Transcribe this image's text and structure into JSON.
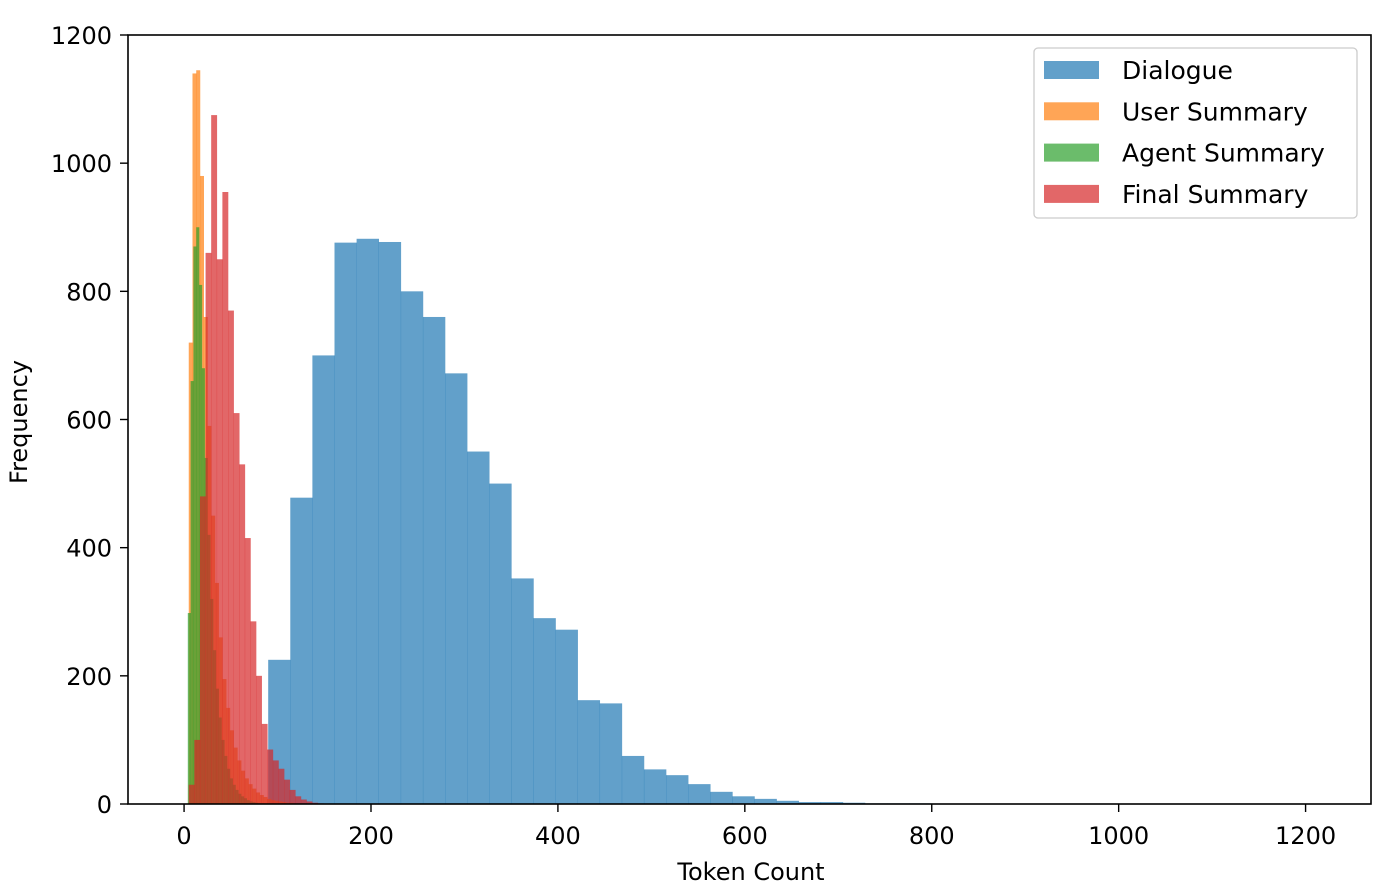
{
  "chart_data": {
    "type": "histogram",
    "xlabel": "Token Count",
    "ylabel": "Frequency",
    "xlim": [
      -60,
      1270
    ],
    "ylim": [
      0,
      1200
    ],
    "x_ticks": [
      0,
      200,
      400,
      600,
      800,
      1000,
      1200
    ],
    "y_ticks": [
      0,
      200,
      400,
      600,
      800,
      1000,
      1200
    ],
    "grid": false,
    "legend_position": "top-right",
    "series": [
      {
        "name": "Dialogue",
        "color": "#1f77b4",
        "bin_start": 90,
        "bin_width": 23.65,
        "values": [
          225,
          478,
          700,
          876,
          882,
          877,
          800,
          760,
          672,
          550,
          500,
          352,
          290,
          272,
          162,
          157,
          75,
          54,
          45,
          31,
          19,
          12,
          8,
          5,
          3,
          3,
          2,
          1,
          1,
          1
        ]
      },
      {
        "name": "User Summary",
        "color": "#ff7f0e",
        "bin_start": 5,
        "bin_width": 4,
        "values": [
          720,
          1140,
          1145,
          980,
          760,
          590,
          450,
          345,
          260,
          195,
          150,
          115,
          88,
          68,
          52,
          40,
          31,
          24,
          18,
          14,
          11,
          8,
          6,
          5,
          4,
          3,
          2,
          2,
          1,
          1
        ]
      },
      {
        "name": "Agent Summary",
        "color": "#2ca02c",
        "bin_start": 4,
        "bin_width": 3,
        "values": [
          298,
          660,
          870,
          900,
          810,
          680,
          540,
          420,
          320,
          240,
          180,
          135,
          100,
          75,
          55,
          40,
          30,
          22,
          16,
          12,
          9,
          6,
          4,
          3,
          2,
          1
        ]
      },
      {
        "name": "Final Summary",
        "color": "#d62728",
        "bin_start": 5,
        "bin_width": 6,
        "values": [
          30,
          100,
          480,
          860,
          1075,
          850,
          955,
          770,
          610,
          530,
          415,
          285,
          200,
          125,
          85,
          68,
          55,
          38,
          22,
          12,
          7,
          4,
          2,
          1
        ]
      }
    ]
  }
}
